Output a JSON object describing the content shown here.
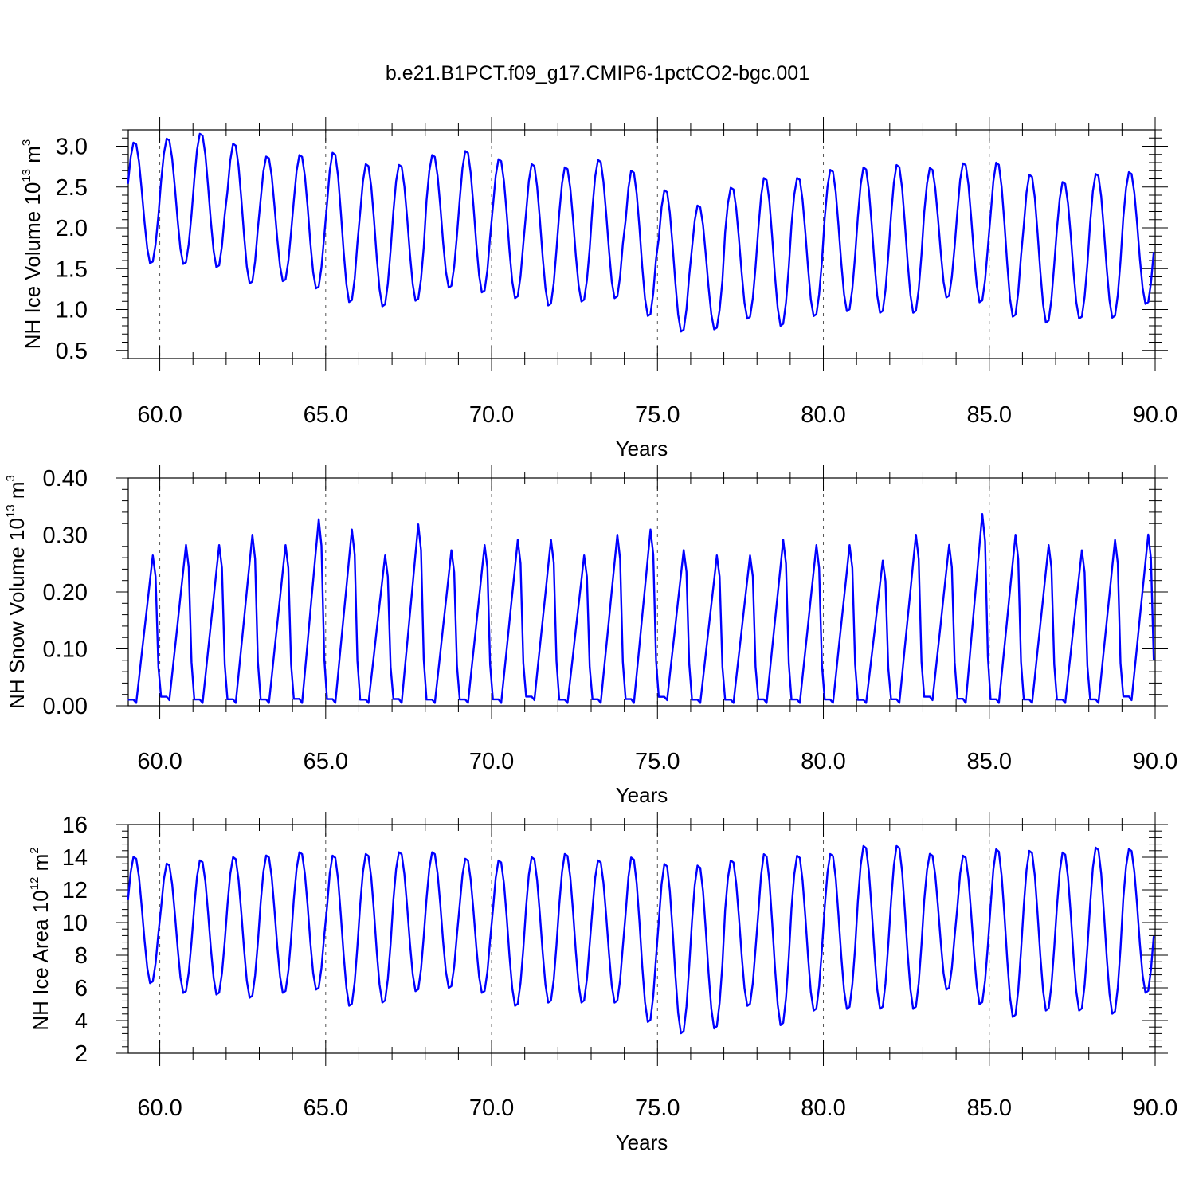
{
  "title": "b.e21.B1PCT.f09_g17.CMIP6-1pctCO2-bgc.001",
  "colors": {
    "series": "#0000ff",
    "axes": "#000000",
    "grid": "#555555"
  },
  "chart_data": [
    {
      "type": "line",
      "ylabel": {
        "text": "NH Ice Volume 10",
        "sup": "13",
        "unit": " m",
        "unit_sup": "3"
      },
      "xlabel": "Years",
      "xlim": [
        59.05,
        90.0
      ],
      "ylim": [
        0.4,
        3.2
      ],
      "xticks": [
        60.0,
        65.0,
        70.0,
        75.0,
        80.0,
        85.0,
        90.0
      ],
      "xtick_labels": [
        "60.0",
        "65.0",
        "70.0",
        "75.0",
        "80.0",
        "85.0",
        "90.0"
      ],
      "yticks": [
        0.5,
        1.0,
        1.5,
        2.0,
        2.5,
        3.0
      ],
      "ytick_labels": [
        "0.5",
        "1.0",
        "1.5",
        "2.0",
        "2.5",
        "3.0"
      ],
      "grid": "vertical dashed lines at 60, 65, 70, 75, 80, 85",
      "series": [
        {
          "cycle": "annual",
          "annual_max": [
            3.06,
            3.11,
            3.17,
            3.05,
            2.89,
            2.91,
            2.94,
            2.8,
            2.79,
            2.91,
            2.96,
            2.86,
            2.8,
            2.76,
            2.85,
            2.72,
            2.48,
            2.29,
            2.51,
            2.63,
            2.63,
            2.73,
            2.76,
            2.79,
            2.75,
            2.81,
            2.82,
            2.67,
            2.58,
            2.68,
            2.7
          ],
          "annual_min": [
            1.55,
            1.54,
            1.5,
            1.3,
            1.33,
            1.24,
            1.07,
            1.02,
            1.09,
            1.25,
            1.19,
            1.12,
            1.03,
            1.08,
            1.12,
            0.9,
            0.71,
            0.74,
            0.87,
            0.78,
            0.9,
            0.96,
            0.94,
            0.94,
            1.13,
            1.07,
            0.89,
            0.82,
            0.87,
            0.88,
            1.05
          ]
        }
      ]
    },
    {
      "type": "line",
      "ylabel": {
        "text": "NH Snow Volume 10",
        "sup": "13",
        "unit": " m",
        "unit_sup": "3"
      },
      "xlabel": "Years",
      "xlim": [
        59.05,
        90.0
      ],
      "ylim": [
        0.0,
        0.4
      ],
      "xticks": [
        60.0,
        65.0,
        70.0,
        75.0,
        80.0,
        85.0,
        90.0
      ],
      "xtick_labels": [
        "60.0",
        "65.0",
        "70.0",
        "75.0",
        "80.0",
        "85.0",
        "90.0"
      ],
      "yticks": [
        0.0,
        0.1,
        0.2,
        0.3,
        0.4
      ],
      "ytick_labels": [
        "0.00",
        "0.10",
        "0.20",
        "0.30",
        "0.40"
      ],
      "grid": "vertical dashed lines at 60, 65, 70, 75, 80, 85",
      "series": [
        {
          "cycle": "annual",
          "annual_max": [
            0.29,
            0.31,
            0.31,
            0.33,
            0.31,
            0.36,
            0.34,
            0.29,
            0.35,
            0.3,
            0.31,
            0.32,
            0.32,
            0.29,
            0.33,
            0.34,
            0.3,
            0.29,
            0.29,
            0.32,
            0.31,
            0.31,
            0.28,
            0.33,
            0.31,
            0.37,
            0.33,
            0.31,
            0.3,
            0.32,
            0.33
          ],
          "annual_min": [
            0.005,
            0.01,
            0.005,
            0.005,
            0.005,
            0.005,
            0.005,
            0.005,
            0.005,
            0.005,
            0.005,
            0.005,
            0.01,
            0.005,
            0.005,
            0.005,
            0.01,
            0.005,
            0.005,
            0.005,
            0.005,
            0.005,
            0.005,
            0.005,
            0.01,
            0.005,
            0.005,
            0.005,
            0.005,
            0.005,
            0.01
          ]
        }
      ]
    },
    {
      "type": "line",
      "ylabel": {
        "text": "NH Ice Area 10",
        "sup": "12",
        "unit": " m",
        "unit_sup": "2"
      },
      "xlabel": "Years",
      "xlim": [
        59.05,
        90.0
      ],
      "ylim": [
        2,
        16
      ],
      "xticks": [
        60.0,
        65.0,
        70.0,
        75.0,
        80.0,
        85.0,
        90.0
      ],
      "xtick_labels": [
        "60.0",
        "65.0",
        "70.0",
        "75.0",
        "80.0",
        "85.0",
        "90.0"
      ],
      "yticks": [
        2,
        4,
        6,
        8,
        10,
        12,
        14,
        16
      ],
      "ytick_labels": [
        "2",
        "4",
        "6",
        "8",
        "10",
        "12",
        "14",
        "16"
      ],
      "grid": "vertical dashed lines at 60, 65, 70, 75, 80, 85",
      "series": [
        {
          "cycle": "annual",
          "annual_max": [
            14.1,
            13.7,
            13.9,
            14.1,
            14.2,
            14.4,
            14.2,
            14.3,
            14.4,
            14.4,
            14.0,
            13.9,
            14.1,
            14.3,
            13.9,
            14.1,
            13.7,
            13.6,
            13.9,
            14.3,
            14.2,
            14.3,
            14.8,
            14.8,
            14.3,
            14.2,
            14.6,
            14.5,
            14.4,
            14.7,
            14.6
          ],
          "annual_min": [
            6.2,
            5.6,
            5.5,
            5.3,
            5.6,
            5.8,
            4.8,
            5.0,
            5.7,
            5.9,
            5.6,
            4.8,
            5.0,
            5.0,
            5.0,
            3.8,
            3.1,
            3.4,
            4.8,
            3.6,
            4.5,
            4.6,
            4.6,
            4.6,
            5.8,
            4.9,
            4.1,
            4.5,
            4.5,
            4.3,
            5.6
          ]
        }
      ]
    }
  ]
}
